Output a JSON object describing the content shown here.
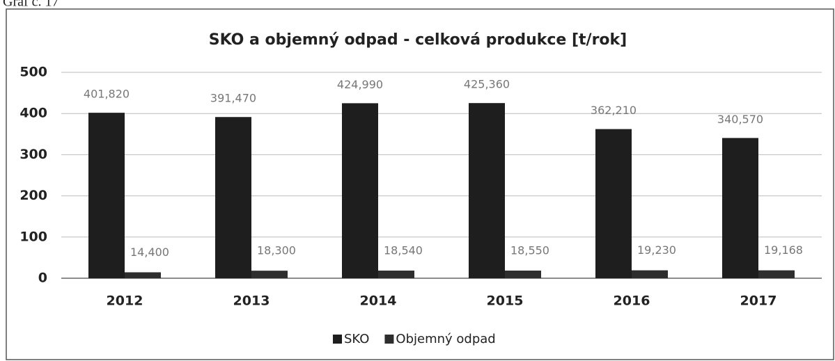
{
  "caption": "Graf č. 17",
  "chart_data": {
    "type": "bar",
    "title": "SKO a objemný odpad - celková produkce [t/rok]",
    "categories": [
      "2012",
      "2013",
      "2014",
      "2015",
      "2016",
      "2017"
    ],
    "series": [
      {
        "name": "SKO",
        "color": "#1e1e1e",
        "values": [
          401.82,
          391.47,
          424.99,
          425.36,
          362.21,
          340.57
        ],
        "value_labels": [
          "401,820",
          "391,470",
          "424,990",
          "425,360",
          "362,210",
          "340,570"
        ]
      },
      {
        "name": "Objemný odpad",
        "color": "#2e2e2e",
        "values": [
          14.4,
          18.3,
          18.54,
          18.55,
          19.23,
          19.168
        ],
        "value_labels": [
          "14,400",
          "18,300",
          "18,540",
          "18,550",
          "19,230",
          "19,168"
        ]
      }
    ],
    "ylim": [
      0,
      500
    ],
    "yticks": [
      0,
      100,
      200,
      300,
      400,
      500
    ],
    "grid": true,
    "legend": "bottom"
  }
}
